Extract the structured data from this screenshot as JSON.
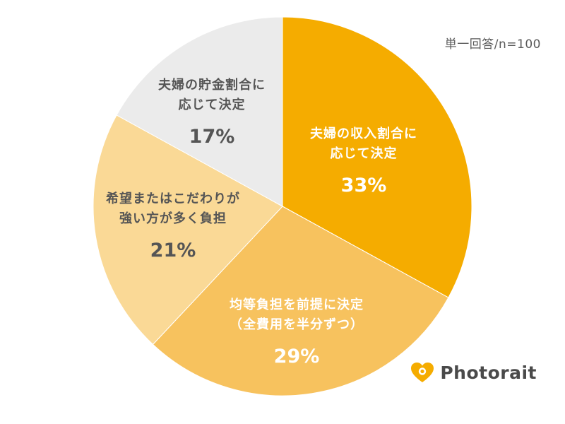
{
  "note": "単一回答/n=100",
  "chart_data": {
    "type": "pie",
    "slices": [
      {
        "label_lines": [
          "夫婦の収入割合に",
          "応じて決定"
        ],
        "value": 33,
        "value_label": "33%",
        "color": "#f5ac00"
      },
      {
        "label_lines": [
          "均等負担を前提に決定",
          "（全費用を半分ずつ）"
        ],
        "value": 29,
        "value_label": "29%",
        "color": "#f7c25e"
      },
      {
        "label_lines": [
          "希望またはこだわりが",
          "強い方が多く負担"
        ],
        "value": 21,
        "value_label": "21%",
        "color": "#fad996"
      },
      {
        "label_lines": [
          "夫婦の貯金割合に",
          "応じて決定"
        ],
        "value": 17,
        "value_label": "17%",
        "color": "#ebebeb"
      }
    ]
  },
  "logo": {
    "text": "Photorait",
    "color": "#f5ac00"
  }
}
